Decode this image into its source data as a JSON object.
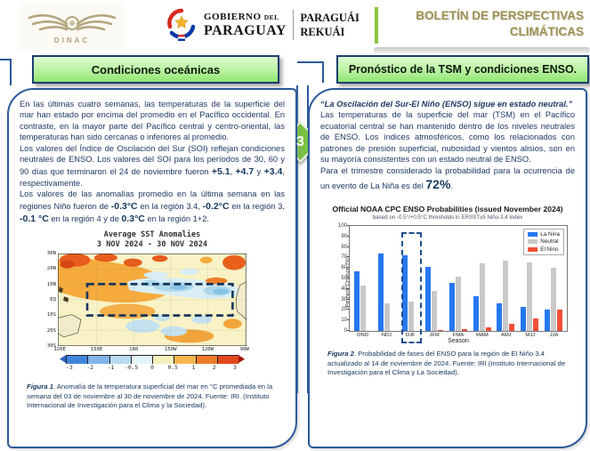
{
  "header": {
    "dinac_label": "DINAC",
    "gov_line1": "GOBIERNO",
    "gov_line1_small": "DEL",
    "gov_line2": "PARAGUAY",
    "gov_guarani1": "PARAGUÁI",
    "gov_guarani2": "REKUÁI",
    "bulletin_title_line1": "BOLETÍN DE PERSPECTIVAS",
    "bulletin_title_line2": "CLIMÁTICAS",
    "accent_green": "#8cc63e",
    "title_gold": "#9c9150"
  },
  "divider": {
    "step_number": "3"
  },
  "left_panel": {
    "title": "Condiciones oceánicas",
    "p1": "En las últimas cuatro semanas, las temperaturas de la superficie del mar han estado por encima del promedio en el Pacífico occidental. En contraste, en la mayor parte del Pacífico central y centro-oriental, las temperaturas han sido cercanas o inferiores al promedio.",
    "p2": {
      "s0": "Los valores del Índice de Oscilación del Sur (SOI) reflejan condiciones neutrales de ENSO. Los valores del SOI para los períodos de 30, 60 y 90 días que terminaron el 24 de noviembre fueron ",
      "v1": "+5.1",
      "s1": ", ",
      "v2": "+4.7",
      "s2": " y ",
      "v3": "+3.4",
      "s3": ", respectivamente."
    },
    "p3": {
      "s0": " Los valores de las anomalías promedio en la última semana en las regiones Niño fueron de ",
      "v1": "-0.3°C",
      "s1": " en la región 3.4, ",
      "v2": "-0.2°C",
      "s2": " en la región 3, ",
      "v3": "-0.1 °C",
      "s3": " en la región 4 y de ",
      "v4": "0.3°C",
      "s4": " en la región 1+2."
    },
    "figure1": {
      "caption_label": "Figura 1",
      "caption_text": ". Anomalía de la temperatura superficial del mar en °C promediada en la semana del 03 de noviembre al 30 de noviembre de 2024. Fuente: IRI. (Instituto Internacional de Investigación para el Clima y la Sociedad)."
    }
  },
  "map": {
    "title_line1": "Average SST Anomalies",
    "title_line2": "3 NOV 2024  -  30 NOV 2024",
    "lat_labels": [
      "30N",
      "20N",
      "10N",
      "EQ",
      "10S",
      "20S",
      "30S"
    ],
    "lon_labels": [
      "120E",
      "150E",
      "180",
      "150W",
      "120W",
      "90W"
    ],
    "colorbar_ticks": [
      "-3",
      "-2",
      "-1",
      "-0.5",
      "0",
      "0.5",
      "1",
      "2",
      "3"
    ],
    "colorbar_colors": [
      "#2b63c9",
      "#3f85dc",
      "#7fb5e8",
      "#b8dcf0",
      "#e4f3f6",
      "#f6f0bc",
      "#f5b84e",
      "#ef7d2a",
      "#e1491d",
      "#a81408"
    ]
  },
  "right_panel": {
    "title": "Pronóstico de la TSM y condiciones ENSO.",
    "quote": "“La Oscilación del Sur-El Niño (ENSO) sigue en estado neutral.”",
    "p1": "Las temperaturas de la superficie del mar (TSM) en el Pacífico ecuatorial central se han mantenido dentro de los niveles neutrales de ENSO. Los índices atmosféricos, como los relacionados con patrones de presión superficial, nubosidad y vientos alisios, son en su mayoría consistentes con un estado neutral de ENSO.",
    "p2": {
      "s0": "Para el trimestre considerado la probabilidad para la ocurrencia de un evento de La Niña es del ",
      "v1": "72%",
      "s1": "."
    },
    "figure2": {
      "caption_label": "Figura 2",
      "caption_text": ". Probabilidad de fases del ENSO para la región de El Niño 3.4 actualizado al 14 de noviembre de 2024. Fuente: IRI (Instituto Internacional de Investigación para el Clima y La Sociedad)."
    }
  },
  "chart_data": {
    "type": "bar",
    "title": "Official NOAA CPC ENSO Probabilities (issued November 2024)",
    "subtitle": "based on -0.5°/+0.5°C thresholds in ERSSTv5 Niño-3.4 index",
    "xlabel": "Season",
    "ylabel": "Percent Chance (%)",
    "ylim": [
      0,
      100
    ],
    "yticks": [
      0,
      10,
      20,
      30,
      40,
      50,
      60,
      70,
      80,
      90,
      100
    ],
    "categories": [
      "OND",
      "NDJ",
      "DJF",
      "JFM",
      "FMA",
      "MAM",
      "AMJ",
      "MJJ",
      "JJA"
    ],
    "series": [
      {
        "name": "La Nina",
        "color": "#2677f0",
        "values": [
          57,
          74,
          72,
          61,
          46,
          33,
          26,
          23,
          20
        ]
      },
      {
        "name": "Neutral",
        "color": "#c9c9c9",
        "values": [
          43,
          26,
          28,
          38,
          52,
          64,
          67,
          65,
          60
        ]
      },
      {
        "name": "El Nino",
        "color": "#f2503a",
        "values": [
          0,
          0,
          0,
          1,
          2,
          3,
          7,
          12,
          20
        ]
      }
    ],
    "legend_position": "top-right",
    "grid": false,
    "highlight_category": "DJF",
    "highlight_index": 2
  }
}
